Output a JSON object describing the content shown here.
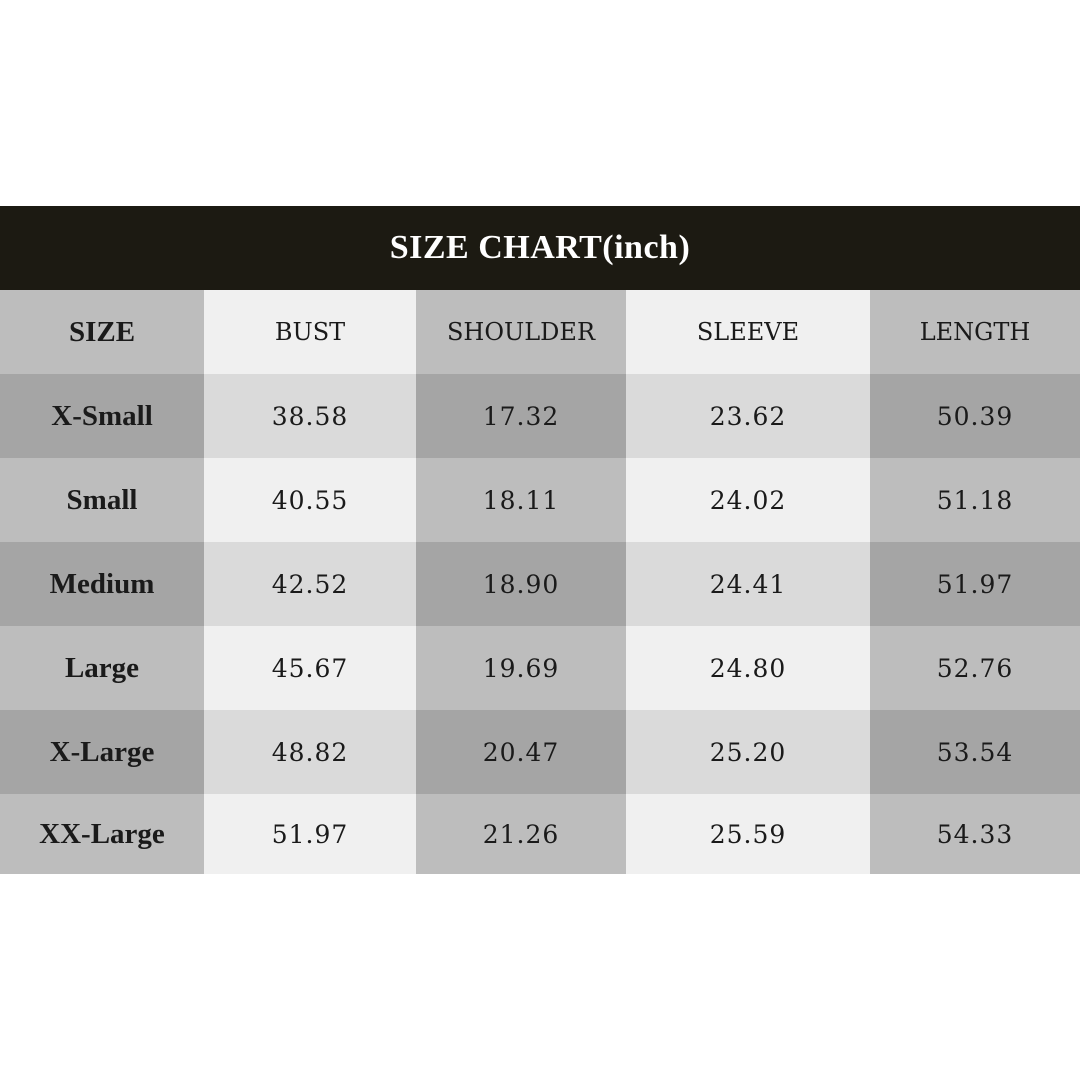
{
  "title": "SIZE CHART(inch)",
  "colors": {
    "title_bg": "#1c1a12",
    "title_text": "#ffffff",
    "text": "#1a1a1a",
    "palette": {
      "A": "#bdbdbd",
      "B": "#f0f0f0",
      "C": "#a5a5a5",
      "D": "#dadada"
    }
  },
  "header": [
    "SIZE",
    "BUST",
    "SHOULDER",
    "SLEEVE",
    "LENGTH"
  ],
  "rows": [
    {
      "size": "X-Small",
      "values": [
        "38.58",
        "17.32",
        "23.62",
        "50.39"
      ]
    },
    {
      "size": "Small",
      "values": [
        "40.55",
        "18.11",
        "24.02",
        "51.18"
      ]
    },
    {
      "size": "Medium",
      "values": [
        "42.52",
        "18.90",
        "24.41",
        "51.97"
      ]
    },
    {
      "size": "Large",
      "values": [
        "45.67",
        "19.69",
        "24.80",
        "52.76"
      ]
    },
    {
      "size": "X-Large",
      "values": [
        "48.82",
        "20.47",
        "25.20",
        "53.54"
      ]
    },
    {
      "size": "XX-Large",
      "values": [
        "51.97",
        "21.26",
        "25.59",
        "54.33"
      ]
    }
  ],
  "shading": [
    [
      "A",
      "B",
      "A",
      "B",
      "A"
    ],
    [
      "C",
      "D",
      "C",
      "D",
      "C"
    ],
    [
      "A",
      "B",
      "A",
      "B",
      "A"
    ],
    [
      "C",
      "D",
      "C",
      "D",
      "C"
    ],
    [
      "A",
      "B",
      "A",
      "B",
      "A"
    ],
    [
      "C",
      "D",
      "C",
      "D",
      "C"
    ],
    [
      "A",
      "B",
      "A",
      "B",
      "A"
    ]
  ]
}
